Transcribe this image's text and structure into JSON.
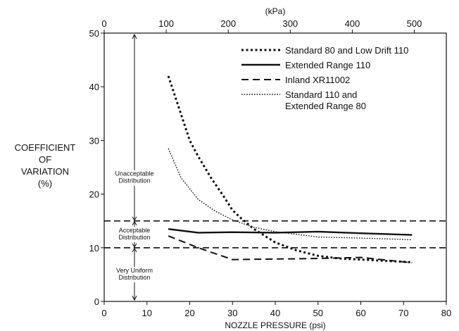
{
  "chart_data": {
    "type": "line",
    "title": "",
    "xlabel": "NOZZLE PRESSURE (psi)",
    "x2label": "(kPa)",
    "ylabel": [
      "COEFFICIENT",
      "OF",
      "VARIATION",
      "(%)"
    ],
    "xlim": [
      0,
      80
    ],
    "ylim": [
      0,
      50
    ],
    "x2lim": [
      0,
      551.6
    ],
    "xticks": [
      0,
      10,
      20,
      30,
      40,
      50,
      60,
      70,
      80
    ],
    "yticks": [
      0,
      10,
      20,
      30,
      40,
      50
    ],
    "x2ticks": [
      0,
      100,
      200,
      300,
      400,
      500
    ],
    "grid": false,
    "legend_position": "top-right",
    "series": [
      {
        "name": "Standard 80 and Low Drift 110",
        "style": "dotted-thick",
        "x": [
          15,
          20,
          22,
          25,
          28,
          30,
          32,
          35,
          40,
          45,
          50,
          55,
          60,
          72
        ],
        "y": [
          42,
          30,
          27,
          23,
          19.5,
          17,
          15.5,
          13.5,
          11,
          9.5,
          8.5,
          8,
          7.8,
          7.3
        ]
      },
      {
        "name": "Extended Range 110",
        "style": "solid",
        "x": [
          15,
          22,
          30,
          40,
          50,
          60,
          72
        ],
        "y": [
          13.5,
          12.8,
          12.9,
          12.8,
          13,
          12.7,
          12.4
        ]
      },
      {
        "name": "Inland XR11002",
        "style": "dashed",
        "x": [
          15,
          22,
          30,
          40,
          50,
          60,
          72
        ],
        "y": [
          12.2,
          10,
          7.8,
          7.9,
          8,
          8.2,
          7.2
        ]
      },
      {
        "name": "Standard 110 and Extended Range 80",
        "name_lines": [
          "Standard 110 and",
          "Extended Range 80"
        ],
        "style": "dotted-thin",
        "x": [
          15,
          18,
          22,
          26,
          30,
          35,
          40,
          45,
          50,
          60,
          72
        ],
        "y": [
          28.5,
          23,
          19,
          16.8,
          15.2,
          13.8,
          13,
          12.5,
          12,
          11.8,
          11.5
        ]
      }
    ],
    "reference_lines": [
      15,
      10
    ],
    "zones": [
      {
        "lines": [
          "Unacceptable",
          "Distribution"
        ],
        "from": 15,
        "to": 50
      },
      {
        "lines": [
          "Acceptable",
          "Distribution"
        ],
        "from": 10,
        "to": 15
      },
      {
        "lines": [
          "Very Uniform",
          "Distribution"
        ],
        "from": 0,
        "to": 10
      }
    ]
  }
}
